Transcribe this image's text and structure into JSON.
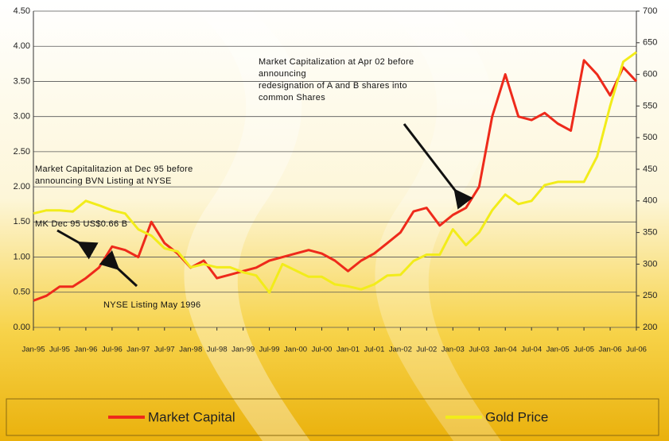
{
  "chart_data": {
    "type": "line",
    "categories": [
      "Jan-95",
      null,
      "Jul-95",
      null,
      "Jan-96",
      null,
      "Jul-96",
      null,
      "Jan-97",
      null,
      "Jul-97",
      null,
      "Jan-98",
      null,
      "Jul-98",
      null,
      "Jan-99",
      null,
      "Jul-99",
      null,
      "Jan-00",
      null,
      "Jul-00",
      null,
      "Jan-01",
      null,
      "Jul-01",
      null,
      "Jan-02",
      null,
      "Jul-02",
      null,
      "Jan-03",
      null,
      "Jul-03",
      null,
      "Jan-04",
      null,
      "Jul-04",
      null,
      "Jan-05",
      null,
      "Jul-05",
      null,
      "Jan-06",
      null,
      "Jul-06"
    ],
    "series": [
      {
        "name": "Market Capital",
        "color": "#ee2a1b",
        "values": [
          0.38,
          0.45,
          0.58,
          0.58,
          0.7,
          0.85,
          1.15,
          1.1,
          1.0,
          1.5,
          1.2,
          1.05,
          0.85,
          0.95,
          0.7,
          0.75,
          0.8,
          0.85,
          0.95,
          1.0,
          1.05,
          1.1,
          1.05,
          0.95,
          0.8,
          0.95,
          1.05,
          1.2,
          1.35,
          1.65,
          1.7,
          1.45,
          1.6,
          1.7,
          2.0,
          3.0,
          3.6,
          3.0,
          2.95,
          3.05,
          2.9,
          2.8,
          3.8,
          3.6,
          3.3,
          3.7,
          3.5
        ]
      },
      {
        "name": "Gold Price",
        "color": "#f2ec1a",
        "axis": "y2",
        "values": [
          380,
          385,
          385,
          383,
          400,
          393,
          385,
          380,
          355,
          345,
          325,
          320,
          295,
          300,
          295,
          295,
          287,
          282,
          255,
          300,
          290,
          280,
          280,
          268,
          265,
          260,
          268,
          282,
          283,
          305,
          315,
          315,
          355,
          330,
          350,
          385,
          410,
          395,
          400,
          425,
          430,
          430,
          430,
          470,
          550,
          620,
          635
        ]
      }
    ],
    "ylim": [
      0,
      4.5
    ],
    "yticks": [
      {
        "value": 0,
        "label": "0.00"
      },
      {
        "value": 0.5,
        "label": "0.50"
      },
      {
        "value": 1,
        "label": "1.00"
      },
      {
        "value": 1.5,
        "label": "1.50"
      },
      {
        "value": 2,
        "label": "2.00"
      },
      {
        "value": 2.5,
        "label": "2.50"
      },
      {
        "value": 3,
        "label": "3.00"
      },
      {
        "value": 3.5,
        "label": "3.50"
      },
      {
        "value": 4,
        "label": "4.00"
      },
      {
        "value": 4.5,
        "label": "4.50"
      }
    ],
    "y2lim": [
      200,
      700
    ],
    "y2ticks": [
      200,
      250,
      300,
      350,
      400,
      450,
      500,
      550,
      600,
      650,
      700
    ],
    "grid": true,
    "annotations": [
      [
        "Market Capitalization at Apr 02 before",
        "announcing",
        "redesignation of A and B shares into",
        "common  Shares"
      ],
      [
        "Market Capitalitazion at Dec 95 before",
        "announcing  BVN Listing at NYSE"
      ],
      [
        "MK  Dec 95  US$0.66  B"
      ],
      [
        "NYSE  Listing  May  1996"
      ]
    ]
  }
}
